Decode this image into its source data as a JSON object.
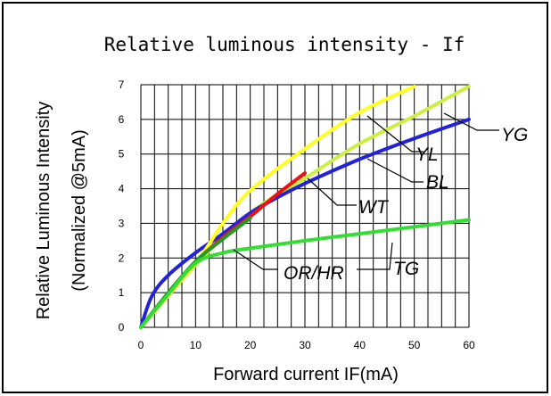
{
  "chart_data": {
    "type": "line",
    "title": "Relative luminous intensity - If",
    "xlabel": "Forward current IF(mA)",
    "ylabel_line1": "Relative Luminous Intensity",
    "ylabel_line2": "(Normalized @5mA)",
    "xlim": [
      0,
      60
    ],
    "ylim": [
      0,
      7
    ],
    "x_ticks": [
      "0",
      "10",
      "20",
      "30",
      "40",
      "50",
      "60"
    ],
    "y_ticks": [
      "0",
      "1",
      "2",
      "3",
      "4",
      "5",
      "6",
      "7"
    ],
    "grid": true,
    "series": [
      {
        "name": "YG",
        "color": "#ccf040",
        "x": [
          0,
          10,
          20,
          30,
          40,
          50,
          60
        ],
        "y": [
          0,
          1.8,
          3.3,
          4.3,
          5.3,
          6.1,
          6.95
        ]
      },
      {
        "name": "BL",
        "color": "#2222dd",
        "x": [
          0,
          2,
          5,
          10,
          15,
          20,
          25,
          30,
          40,
          50,
          60
        ],
        "y": [
          0,
          0.9,
          1.5,
          2.15,
          2.7,
          3.3,
          3.75,
          4.15,
          4.85,
          5.45,
          6.0
        ]
      },
      {
        "name": "YL",
        "color": "#ffff22",
        "x": [
          0,
          10,
          15,
          20,
          30,
          40,
          50
        ],
        "y": [
          0,
          1.85,
          3.0,
          3.95,
          5.15,
          6.2,
          6.95
        ]
      },
      {
        "name": "WT",
        "color": "#ee1111",
        "x": [
          10,
          15,
          20,
          25,
          30
        ],
        "y": [
          1.9,
          2.6,
          3.2,
          3.85,
          4.45
        ]
      },
      {
        "name": "OR/HR",
        "color": "#229922",
        "x": [
          0,
          5,
          10,
          15,
          20
        ],
        "y": [
          0,
          1.0,
          1.9,
          2.55,
          3.15
        ]
      },
      {
        "name": "TG",
        "color": "#33dd33",
        "x": [
          0,
          5,
          10,
          15,
          20,
          30,
          40,
          50,
          60
        ],
        "y": [
          0,
          0.95,
          1.85,
          2.15,
          2.28,
          2.5,
          2.7,
          2.9,
          3.1
        ]
      }
    ]
  }
}
